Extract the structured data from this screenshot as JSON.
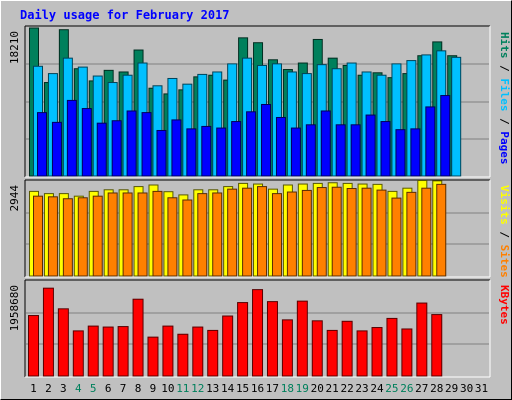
{
  "chart_data": [
    {
      "type": "bar",
      "title": "Daily usage for February 2017",
      "categories": [
        "1",
        "2",
        "3",
        "4",
        "5",
        "6",
        "7",
        "8",
        "9",
        "10",
        "11",
        "12",
        "13",
        "14",
        "15",
        "16",
        "17",
        "18",
        "19",
        "20",
        "21",
        "22",
        "23",
        "24",
        "25",
        "26",
        "27",
        "28",
        "29",
        "30",
        "31"
      ],
      "weekend_days": [
        4,
        5,
        11,
        12,
        18,
        19,
        25,
        26
      ],
      "ylim": [
        0,
        18210
      ],
      "y_tick_label": "18210",
      "right_label": [
        "Pages",
        "Files",
        "Hits"
      ],
      "series": [
        {
          "name": "Hits",
          "color": "#00805c",
          "values": [
            18210,
            11500,
            18000,
            13200,
            11700,
            13000,
            12800,
            15500,
            10800,
            10100,
            10600,
            12200,
            12400,
            11800,
            17000,
            16400,
            14300,
            13100,
            13900,
            16800,
            14500,
            13600,
            12400,
            12700,
            12100,
            12600,
            14800,
            16500,
            14800,
            0,
            0
          ]
        },
        {
          "name": "Files",
          "color": "#00c0ff",
          "values": [
            13500,
            12600,
            14500,
            13400,
            12300,
            11500,
            12400,
            13900,
            11100,
            12000,
            11300,
            12500,
            12800,
            13800,
            14500,
            13600,
            13800,
            12800,
            12600,
            13700,
            13200,
            13900,
            12800,
            12400,
            13800,
            14200,
            14900,
            15400,
            14600,
            0,
            0
          ]
        },
        {
          "name": "Pages",
          "color": "#0000ff",
          "values": [
            7800,
            6600,
            9300,
            8300,
            6500,
            6800,
            8000,
            7800,
            5600,
            6900,
            5800,
            6100,
            5900,
            6700,
            7900,
            8800,
            7200,
            5900,
            6300,
            8000,
            6300,
            6300,
            7500,
            6700,
            5700,
            5800,
            8500,
            9900,
            0,
            0,
            0
          ]
        }
      ]
    },
    {
      "type": "bar",
      "ylim": [
        0,
        2944
      ],
      "y_tick_label": "2944",
      "right_label": [
        "Sites",
        "Visits"
      ],
      "series": [
        {
          "name": "Visits",
          "color": "#ffff00",
          "values": [
            2650,
            2580,
            2580,
            2500,
            2650,
            2700,
            2700,
            2800,
            2850,
            2640,
            2540,
            2700,
            2700,
            2800,
            2900,
            2880,
            2720,
            2850,
            2880,
            2900,
            2920,
            2900,
            2880,
            2870,
            2650,
            2750,
            2990,
            2980,
            0,
            0,
            0
          ]
        },
        {
          "name": "Sites",
          "color": "#ff8000",
          "values": [
            2500,
            2480,
            2420,
            2450,
            2500,
            2600,
            2600,
            2600,
            2650,
            2450,
            2380,
            2580,
            2600,
            2720,
            2750,
            2800,
            2580,
            2630,
            2680,
            2770,
            2780,
            2740,
            2750,
            2690,
            2440,
            2620,
            2750,
            2870,
            0,
            0,
            0
          ]
        }
      ]
    },
    {
      "type": "bar",
      "ylim": [
        0,
        1958680
      ],
      "y_tick_label": "1958680",
      "right_label": [
        "KBytes"
      ],
      "series": [
        {
          "name": "KBytes",
          "color": "#ff0000",
          "values": [
            1260000,
            1830000,
            1400000,
            940000,
            1040000,
            1020000,
            1030000,
            1600000,
            810000,
            1040000,
            870000,
            1020000,
            950000,
            1250000,
            1530000,
            1800000,
            1550000,
            1170000,
            1560000,
            1150000,
            950000,
            1140000,
            940000,
            1010000,
            1200000,
            980000,
            1520000,
            1280000,
            0,
            0,
            0
          ]
        }
      ]
    }
  ]
}
